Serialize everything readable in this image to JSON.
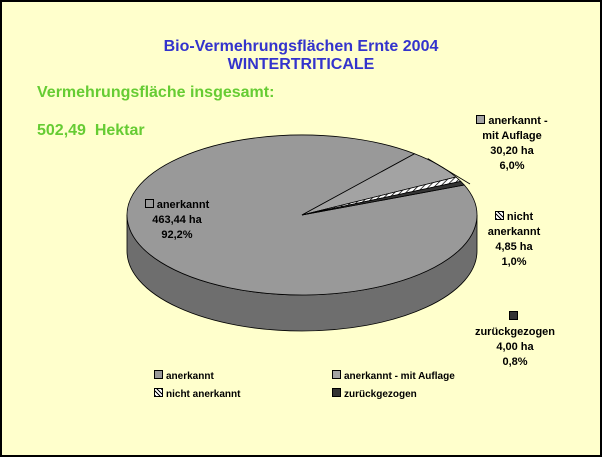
{
  "chart_data": {
    "type": "pie3d",
    "title": "Bio-Vermehrungsflächen Ernte 2004",
    "subtitle": "WINTERTRITICALE",
    "annotations": [
      "Vermehrungsfläche insgesamt:",
      "502,49  Hektar"
    ],
    "categories": [
      "anerkannt",
      "anerkannt - mit Auflage",
      "nicht anerkannt",
      "zurückgezogen"
    ],
    "values": [
      463.44,
      30.2,
      4.85,
      4.0
    ],
    "value_labels": [
      "463,44 ha",
      "30,20 ha",
      "4,85 ha",
      "4,00 ha"
    ],
    "percentages": [
      92.2,
      6.0,
      1.0,
      0.8
    ],
    "percentage_labels": [
      "92,2%",
      "6,0%",
      "1,0%",
      "0,8%"
    ],
    "colors": [
      "#999999",
      "#a3a3a3",
      "hatch",
      "#333333"
    ],
    "legend": "bottom"
  }
}
